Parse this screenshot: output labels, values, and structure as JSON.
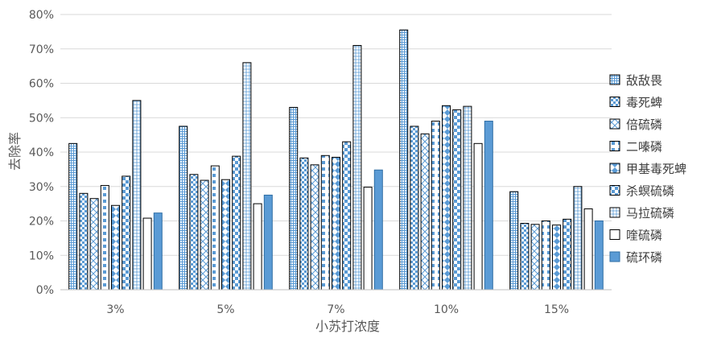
{
  "chart_data": {
    "type": "bar",
    "xlabel": "小苏打浓度",
    "ylabel": "去除率",
    "categories": [
      "3%",
      "5%",
      "7%",
      "10%",
      "15%"
    ],
    "ylim": [
      0,
      80
    ],
    "ytick_labels": [
      "0%",
      "10%",
      "20%",
      "30%",
      "40%",
      "50%",
      "60%",
      "70%",
      "80%"
    ],
    "grid": true,
    "legend_position": "right",
    "series": [
      {
        "name": "敌敌畏",
        "values": [
          42.5,
          47.5,
          53.0,
          75.5,
          28.5
        ]
      },
      {
        "name": "毒死蜱",
        "values": [
          28.0,
          33.5,
          38.3,
          47.5,
          19.3
        ]
      },
      {
        "name": "倍硫磷",
        "values": [
          26.5,
          31.8,
          36.3,
          45.3,
          19.0
        ]
      },
      {
        "name": "二嗪磷",
        "values": [
          30.3,
          36.0,
          39.0,
          49.0,
          20.0
        ]
      },
      {
        "name": "甲基毒死蜱",
        "values": [
          24.5,
          32.0,
          38.5,
          53.5,
          18.8
        ]
      },
      {
        "name": "杀螟硫磷",
        "values": [
          33.0,
          38.8,
          43.0,
          52.3,
          20.5
        ]
      },
      {
        "name": "马拉硫磷",
        "values": [
          55.0,
          66.0,
          71.0,
          53.3,
          30.0
        ]
      },
      {
        "name": "喹硫磷",
        "values": [
          20.8,
          25.0,
          29.8,
          42.5,
          23.5
        ]
      },
      {
        "name": "硫环磷",
        "values": [
          22.3,
          27.5,
          34.8,
          49.0,
          20.0
        ]
      }
    ]
  }
}
